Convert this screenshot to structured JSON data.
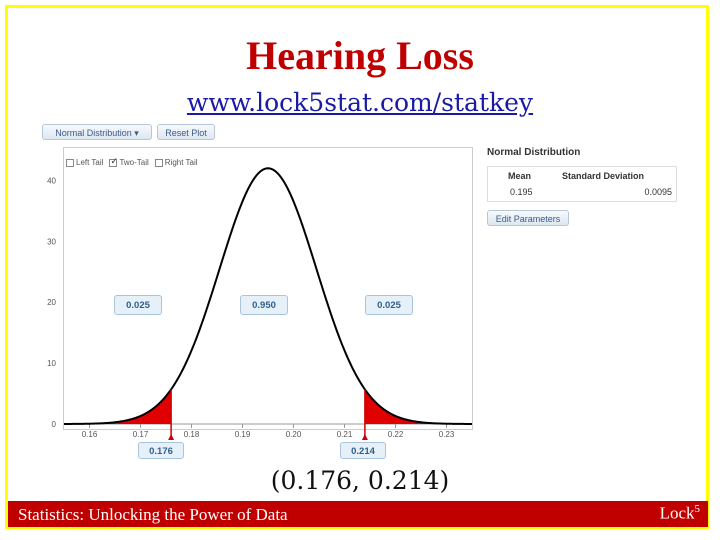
{
  "slide": {
    "title": "Hearing Loss",
    "url": "www.lock5stat.com/statkey",
    "interval": "(0.176, 0.214)",
    "footer_left": "Statistics: Unlocking the Power of Data",
    "footer_right_base": "Lock",
    "footer_right_sup": "5"
  },
  "colors": {
    "frame": "#FFFF00",
    "title": "#C00000",
    "footer_bg": "#C00000",
    "tail_fill": "#E00000"
  },
  "app": {
    "dist_dropdown": "Normal Distribution",
    "reset_button": "Reset Plot",
    "left_tail": "Left Tail",
    "two_tail": "Two-Tail",
    "right_tail": "Right Tail",
    "two_tail_checked": true,
    "panel_title": "Normal Distribution",
    "mean_label": "Mean",
    "sd_label": "Standard Deviation",
    "mean_value": "0.195",
    "sd_value": "0.0095",
    "edit_button": "Edit Parameters",
    "prop_left": "0.025",
    "prop_middle": "0.950",
    "prop_right": "0.025",
    "cut_left": "0.176",
    "cut_right": "0.214"
  },
  "chart_data": {
    "type": "area",
    "distribution": "normal",
    "mean": 0.195,
    "sd": 0.0095,
    "xlim": [
      0.155,
      0.235
    ],
    "ylim": [
      0,
      45
    ],
    "xticks": [
      "0.16",
      "0.17",
      "0.18",
      "0.19",
      "0.20",
      "0.21",
      "0.22",
      "0.23"
    ],
    "xtick_values": [
      0.16,
      0.17,
      0.18,
      0.19,
      0.2,
      0.21,
      0.22,
      0.23
    ],
    "yticks": [
      "0",
      "10",
      "20",
      "30",
      "40"
    ],
    "ytick_values": [
      0,
      10,
      20,
      30,
      40
    ],
    "shaded_tails": [
      0.176,
      0.214
    ]
  }
}
